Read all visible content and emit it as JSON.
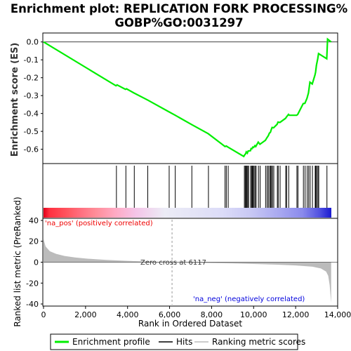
{
  "chart_data": {
    "type": "line",
    "title_line1": "Enrichment plot: REPLICATION FORK PROCESSING%",
    "title_line2": "GOBP%GO:0031297",
    "top_ylabel": "Enrichment score (ES)",
    "bottom_ylabel_line1": "Ranked list metric (PreRanked)",
    "xlabel": "Rank in Ordered Dataset",
    "x_range": [
      0,
      14000
    ],
    "x_ticks": [
      0,
      2000,
      4000,
      6000,
      8000,
      10000,
      12000,
      14000
    ],
    "x_tick_labels": [
      "0",
      "2,000",
      "4,000",
      "6,000",
      "8,000",
      "10,000",
      "12,000",
      "14,000"
    ],
    "es_ylim": [
      -0.68,
      0.05
    ],
    "es_ticks": [
      0.0,
      -0.1,
      -0.2,
      -0.3,
      -0.4,
      -0.5,
      -0.6
    ],
    "es_tick_labels": [
      "0.0",
      "-0.1",
      "-0.2",
      "-0.3",
      "-0.4",
      "-0.5",
      "-0.6"
    ],
    "metric_ylim": [
      -42,
      42
    ],
    "metric_ticks": [
      40,
      20,
      0,
      -20,
      -40
    ],
    "metric_tick_labels": [
      "40",
      "20",
      "0",
      "-20",
      "-40"
    ],
    "n_genes": 13690,
    "zero_cross_rank": 6117,
    "zero_cross_label": "Zero cross at 6117",
    "pos_label": "'na_pos' (positively correlated)",
    "neg_label": "'na_neg' (negatively correlated)",
    "es_profile": [
      [
        0,
        0.0
      ],
      [
        3450,
        -0.245
      ],
      [
        3500,
        -0.24
      ],
      [
        3900,
        -0.265
      ],
      [
        3950,
        -0.262
      ],
      [
        4300,
        -0.285
      ],
      [
        4960,
        -0.325
      ],
      [
        5960,
        -0.39
      ],
      [
        6270,
        -0.41
      ],
      [
        7050,
        -0.462
      ],
      [
        7840,
        -0.513
      ],
      [
        8640,
        -0.585
      ],
      [
        8700,
        -0.582
      ],
      [
        8780,
        -0.588
      ],
      [
        9530,
        -0.64
      ],
      [
        9570,
        -0.632
      ],
      [
        9620,
        -0.625
      ],
      [
        9650,
        -0.615
      ],
      [
        9700,
        -0.622
      ],
      [
        9740,
        -0.61
      ],
      [
        9850,
        -0.608
      ],
      [
        9880,
        -0.596
      ],
      [
        9920,
        -0.597
      ],
      [
        9960,
        -0.588
      ],
      [
        10000,
        -0.59
      ],
      [
        10060,
        -0.58
      ],
      [
        10100,
        -0.585
      ],
      [
        10220,
        -0.56
      ],
      [
        10300,
        -0.572
      ],
      [
        10560,
        -0.55
      ],
      [
        10620,
        -0.538
      ],
      [
        10700,
        -0.524
      ],
      [
        10750,
        -0.51
      ],
      [
        10800,
        -0.505
      ],
      [
        10840,
        -0.49
      ],
      [
        10880,
        -0.478
      ],
      [
        10950,
        -0.48
      ],
      [
        11120,
        -0.46
      ],
      [
        11160,
        -0.448
      ],
      [
        11250,
        -0.45
      ],
      [
        11520,
        -0.427
      ],
      [
        11560,
        -0.42
      ],
      [
        11660,
        -0.405
      ],
      [
        11700,
        -0.41
      ],
      [
        12050,
        -0.41
      ],
      [
        12100,
        -0.405
      ],
      [
        12360,
        -0.345
      ],
      [
        12440,
        -0.343
      ],
      [
        12540,
        -0.315
      ],
      [
        12610,
        -0.285
      ],
      [
        12680,
        -0.225
      ],
      [
        12790,
        -0.235
      ],
      [
        12920,
        -0.185
      ],
      [
        12950,
        -0.168
      ],
      [
        12990,
        -0.13
      ],
      [
        13050,
        -0.095
      ],
      [
        13090,
        -0.065
      ],
      [
        13480,
        -0.094
      ],
      [
        13520,
        0.016
      ],
      [
        13690,
        0.0
      ]
    ],
    "hit_ranks": [
      3470,
      3920,
      4320,
      4960,
      5980,
      6270,
      7060,
      7850,
      8640,
      8700,
      8790,
      9560,
      9600,
      9640,
      9680,
      9720,
      9760,
      9860,
      9900,
      9940,
      9980,
      10020,
      10070,
      10120,
      10230,
      10310,
      10570,
      10640,
      10700,
      10760,
      10810,
      10850,
      10900,
      10960,
      11130,
      11170,
      11260,
      11530,
      11570,
      11670,
      12060,
      12110,
      12370,
      12450,
      12550,
      12620,
      12690,
      12800,
      12930,
      12960,
      13000,
      13060,
      13100,
      13490
    ],
    "metric_profile": [
      [
        0,
        22
      ],
      [
        100,
        15
      ],
      [
        300,
        10.5
      ],
      [
        600,
        8
      ],
      [
        1000,
        6
      ],
      [
        1500,
        4.5
      ],
      [
        2000,
        3.5
      ],
      [
        3000,
        2.2
      ],
      [
        4000,
        1.3
      ],
      [
        5000,
        0.6
      ],
      [
        6117,
        0.0
      ],
      [
        7000,
        -0.4
      ],
      [
        8000,
        -0.8
      ],
      [
        9000,
        -1.2
      ],
      [
        10000,
        -1.7
      ],
      [
        11000,
        -2.3
      ],
      [
        12000,
        -3.1
      ],
      [
        12800,
        -4.3
      ],
      [
        13200,
        -6
      ],
      [
        13450,
        -9
      ],
      [
        13550,
        -13
      ],
      [
        13620,
        -22
      ],
      [
        13660,
        -32
      ],
      [
        13690,
        -39
      ]
    ],
    "legend": [
      {
        "label": "Enrichment profile",
        "color": "#00ee00"
      },
      {
        "label": "Hits",
        "color": "#000000"
      },
      {
        "label": "Ranking metric scores",
        "color": "#bbbbbb"
      }
    ],
    "colors": {
      "es_line": "#00ee00",
      "hit": "#000000",
      "metric_fill": "#bbbbbb",
      "pos_text": "#ee0000",
      "neg_text": "#0000dd",
      "zero_cross_line": "#999999"
    }
  }
}
